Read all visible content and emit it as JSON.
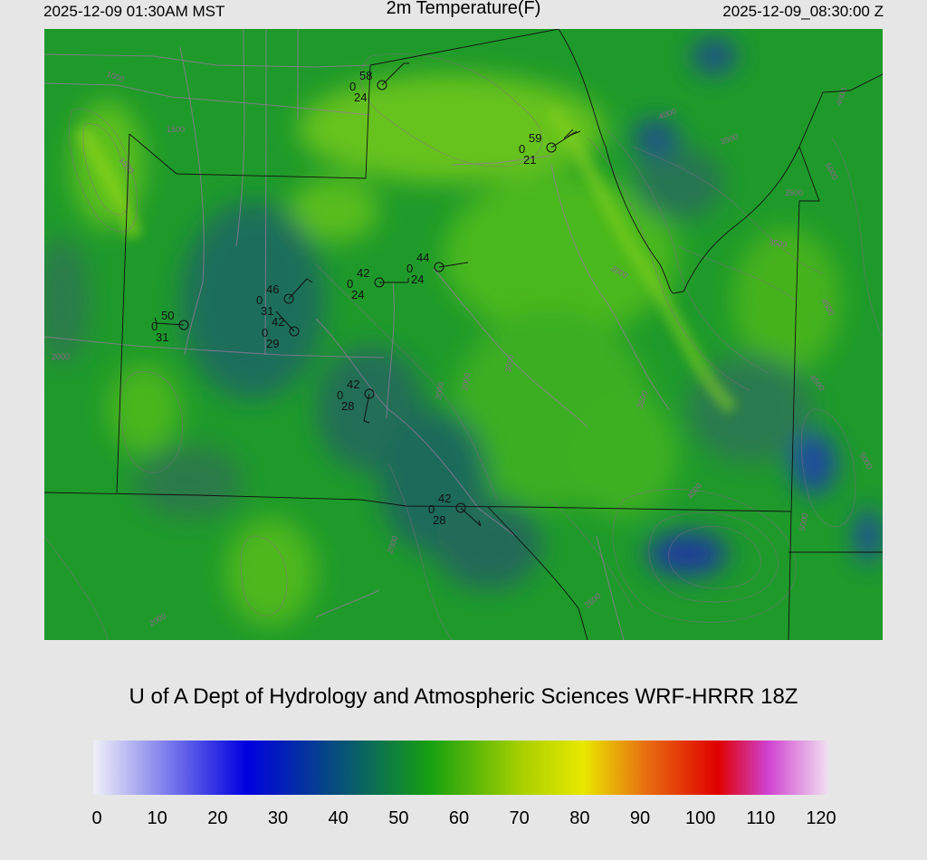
{
  "header": {
    "local_time": "2025-12-09 01:30AM MST",
    "title": "2m Temperature(F)",
    "utc_time": "2025-12-09_08:30:00 Z"
  },
  "credit": "U of A Dept of Hydrology and Atmospheric Sciences WRF-HRRR 18Z",
  "colorbar": {
    "ticks": [
      "0",
      "10",
      "20",
      "30",
      "40",
      "50",
      "60",
      "70",
      "80",
      "90",
      "100",
      "110",
      "120"
    ],
    "min": 0,
    "max": 120,
    "stops": [
      {
        "value": 0,
        "color": "#f0f0f8"
      },
      {
        "value": 25,
        "color": "#0000e0"
      },
      {
        "value": 45,
        "color": "#0a6a5a"
      },
      {
        "value": 55,
        "color": "#16a010"
      },
      {
        "value": 70,
        "color": "#a8d000"
      },
      {
        "value": 80,
        "color": "#e8e800"
      },
      {
        "value": 90,
        "color": "#e87010"
      },
      {
        "value": 102,
        "color": "#e00000"
      },
      {
        "value": 110,
        "color": "#d040d0"
      },
      {
        "value": 120,
        "color": "#f0e0f0"
      }
    ]
  },
  "contour_labels": [
    "1000",
    "1500",
    "1500",
    "2000",
    "2000",
    "2000",
    "2000",
    "2000",
    "2500",
    "2500",
    "3000",
    "3000",
    "3500",
    "3500",
    "3500",
    "4000",
    "4000",
    "4500",
    "4500",
    "4500",
    "5000",
    "5000",
    "5000"
  ],
  "stations": [
    {
      "id": "stn-1",
      "temp": "58",
      "precip": "0",
      "dewpoint": "24"
    },
    {
      "id": "stn-2",
      "temp": "59",
      "precip": "0",
      "dewpoint": "21"
    },
    {
      "id": "stn-3",
      "temp": "44",
      "precip": "0",
      "dewpoint": "24"
    },
    {
      "id": "stn-4",
      "temp": "42",
      "precip": "0",
      "dewpoint": "24"
    },
    {
      "id": "stn-5",
      "temp": "46",
      "precip": "0",
      "dewpoint": "31"
    },
    {
      "id": "stn-6",
      "temp": "42",
      "precip": "0",
      "dewpoint": "29"
    },
    {
      "id": "stn-7",
      "temp": "50",
      "precip": "0",
      "dewpoint": "31"
    },
    {
      "id": "stn-8",
      "temp": "42",
      "precip": "0",
      "dewpoint": "28"
    },
    {
      "id": "stn-9",
      "temp": "42",
      "precip": "0",
      "dewpoint": "28"
    }
  ]
}
